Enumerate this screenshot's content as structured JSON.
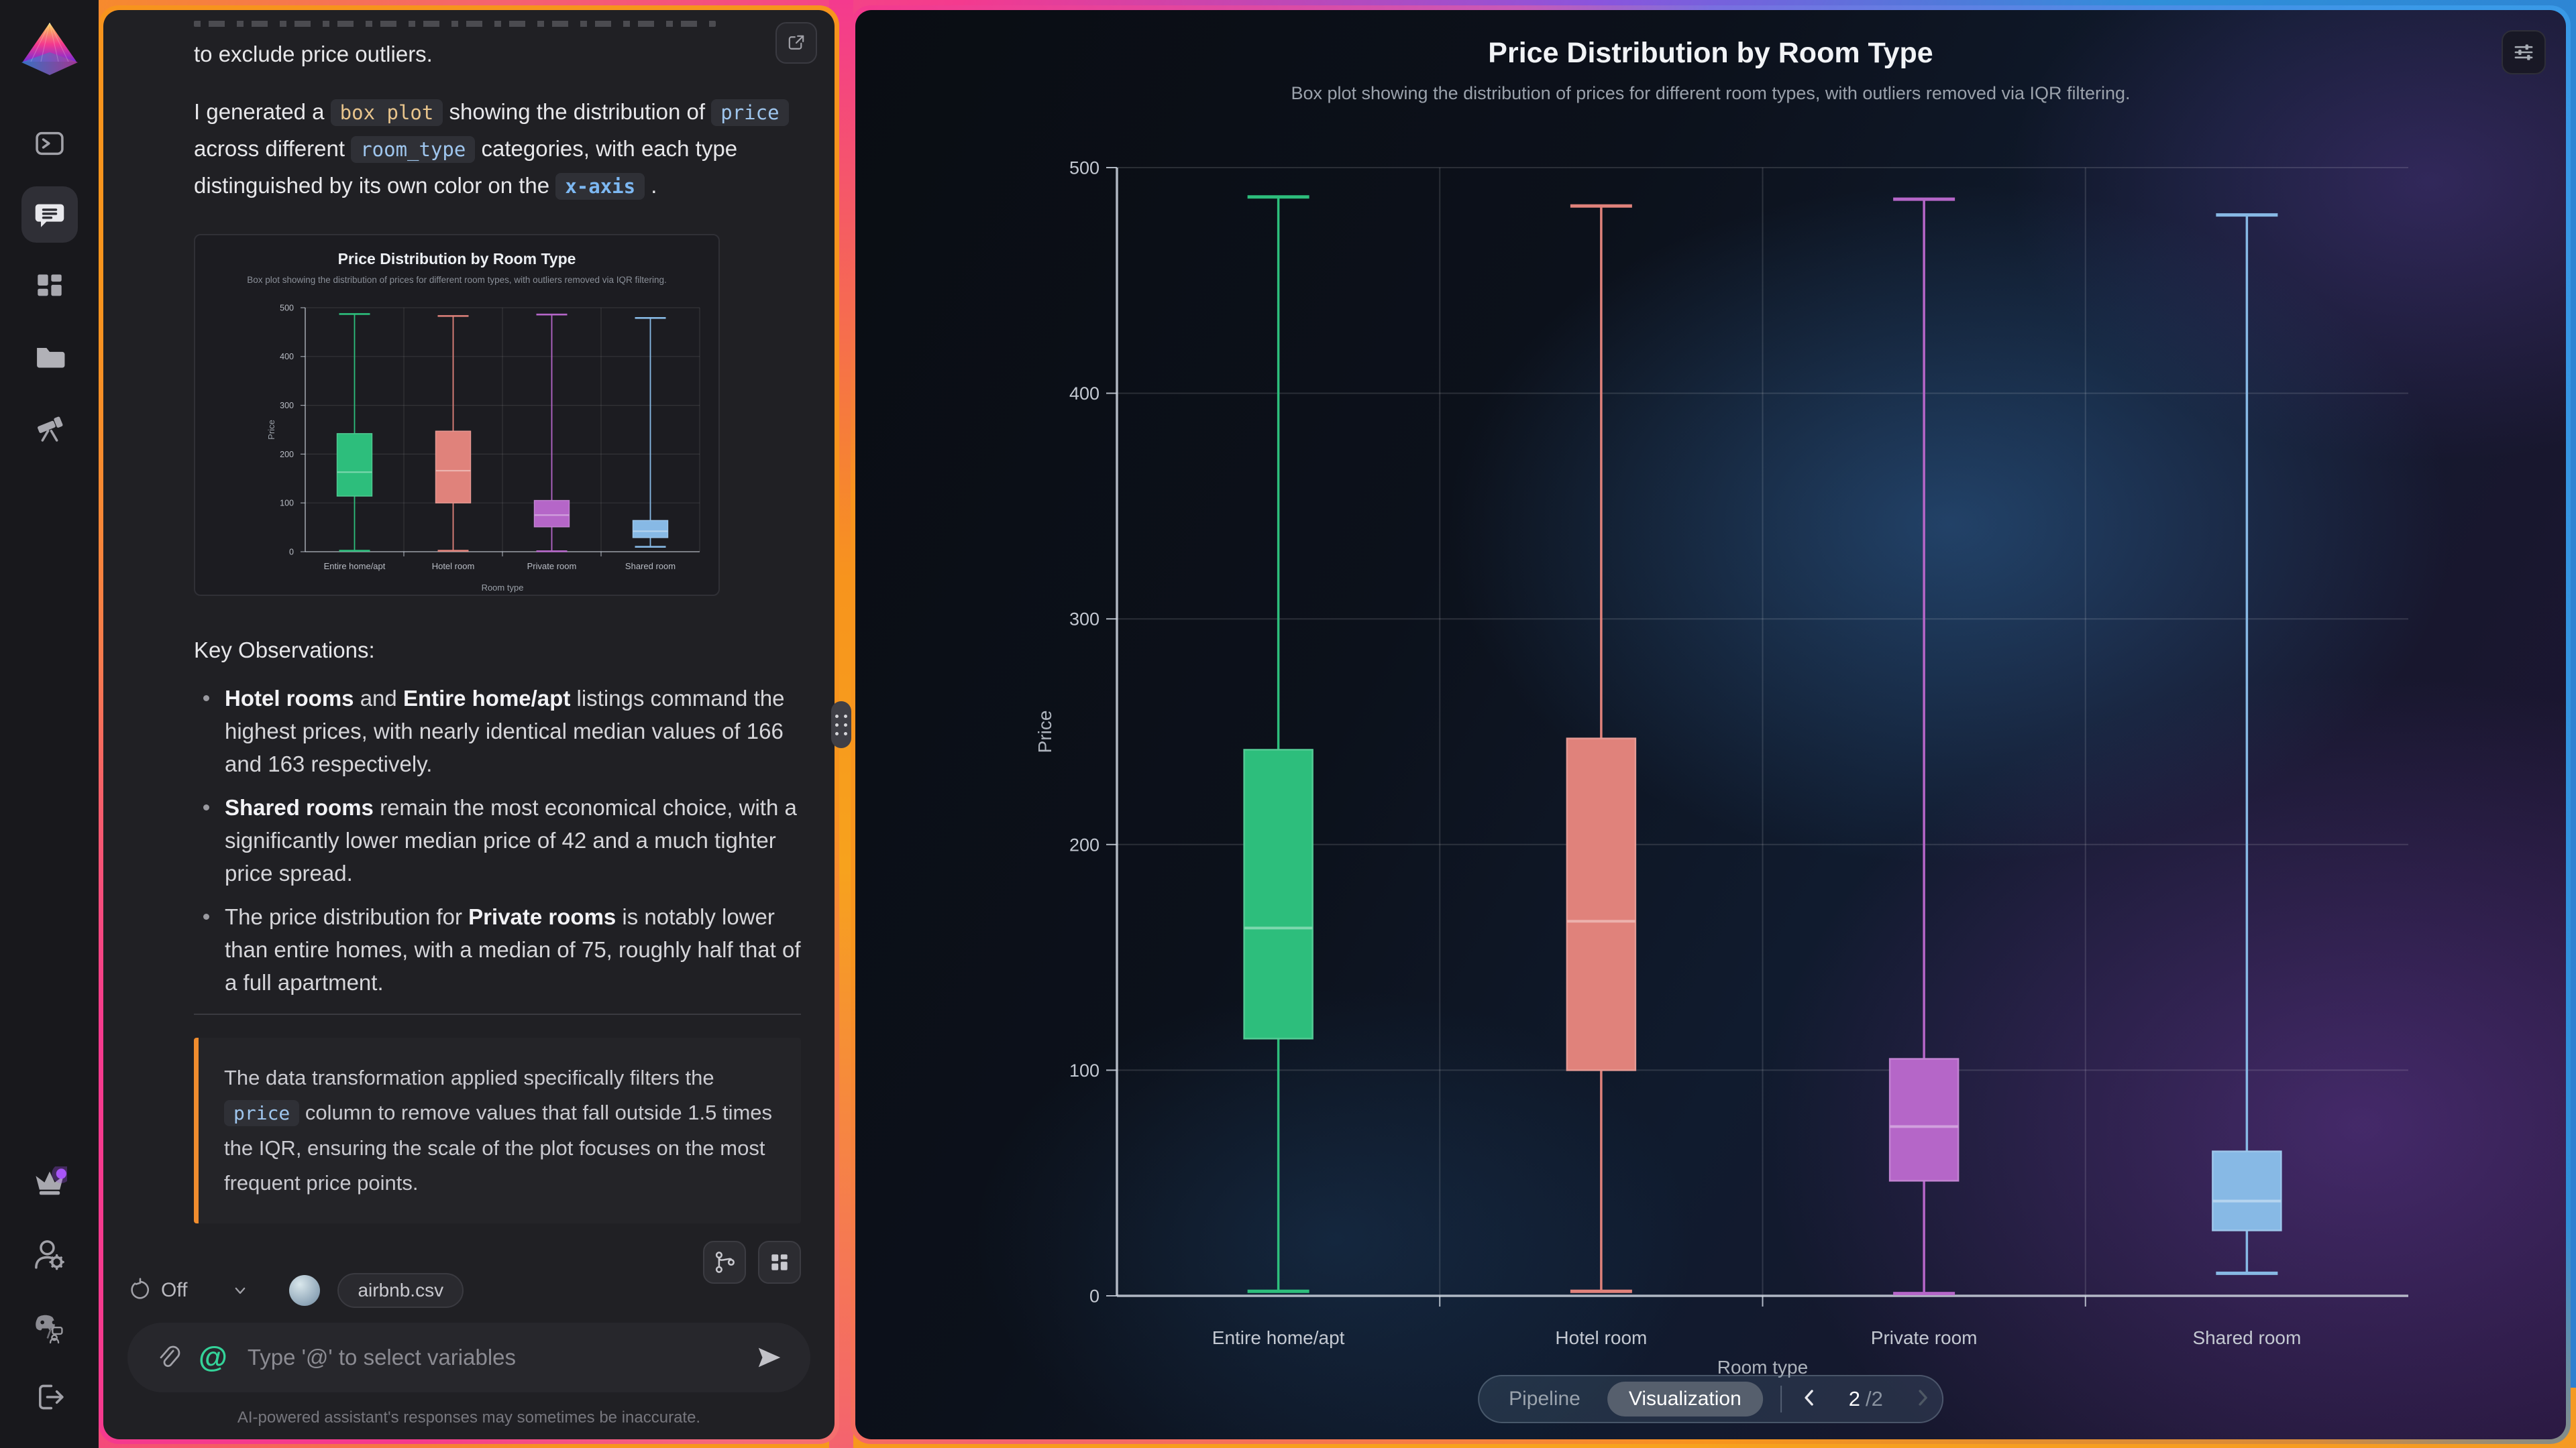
{
  "sidebar": {
    "items": [
      "terminal",
      "chat",
      "dashboard",
      "files",
      "explore"
    ],
    "bottom_items": [
      "premium-crown",
      "account-settings",
      "discord-feedback",
      "logout"
    ],
    "notification_color": "#a855f7"
  },
  "chat": {
    "intro_fragment": "to exclude price outliers.",
    "paragraph": [
      "I generated a ",
      {
        "k": "code",
        "c": "amber",
        "v": "box plot"
      },
      " showing the distribution of ",
      {
        "k": "code",
        "c": "blue",
        "v": "price"
      },
      " across different ",
      {
        "k": "code",
        "c": "blue",
        "v": "room_type"
      },
      " categories, with each type distinguished by its own color on the ",
      {
        "k": "code",
        "c": "bluebold",
        "v": "x-axis"
      },
      " ."
    ],
    "observations_title": "Key Observations:",
    "bullets": [
      [
        {
          "k": "b",
          "v": "Hotel rooms"
        },
        " and ",
        {
          "k": "b",
          "v": "Entire home/apt"
        },
        " listings command the highest prices, with nearly identical median values of 166 and 163 respectively."
      ],
      [
        {
          "k": "b",
          "v": "Shared rooms"
        },
        " remain the most economical choice, with a significantly lower median price of 42 and a much tighter price spread."
      ],
      [
        "The price distribution for ",
        {
          "k": "b",
          "v": "Private rooms"
        },
        " is notably lower than entire homes, with a median of 75, roughly half that of a full apartment."
      ]
    ],
    "callout": [
      "The data transformation applied specifically filters the ",
      {
        "k": "code",
        "c": "blue",
        "v": "price"
      },
      " column to remove values that fall outside 1.5 times the IQR, ensuring the scale of the plot focuses on the most frequent price points."
    ],
    "meta": {
      "rerun_label": "Off",
      "file_chip": "airbnb.csv"
    },
    "composer": {
      "placeholder": "Type '@' to select variables"
    },
    "disclaimer": "AI-powered assistant's responses may sometimes be inaccurate."
  },
  "viz": {
    "footer": {
      "tabs": [
        "Pipeline",
        "Visualization"
      ],
      "active_tab": "Visualization",
      "page": "2",
      "total": "/2"
    }
  },
  "chart_data": {
    "type": "box",
    "title": "Price Distribution by Room Type",
    "subtitle": "Box plot showing the distribution of prices for different room types, with outliers removed via IQR filtering.",
    "xlabel": "Room type",
    "ylabel": "Price",
    "ylim": [
      0,
      500
    ],
    "yticks": [
      0,
      100,
      200,
      300,
      400,
      500
    ],
    "grid": true,
    "legend": false,
    "categories": [
      "Entire home/apt",
      "Hotel room",
      "Private room",
      "Shared room"
    ],
    "series": [
      {
        "name": "Entire home/apt",
        "whisker_low": 2,
        "q1": 114,
        "median": 163,
        "q3": 242,
        "whisker_high": 487,
        "color": "#2dbe7c"
      },
      {
        "name": "Hotel room",
        "whisker_low": 2,
        "q1": 100,
        "median": 166,
        "q3": 247,
        "whisker_high": 483,
        "color": "#e0827b"
      },
      {
        "name": "Private room",
        "whisker_low": 1,
        "q1": 51,
        "median": 75,
        "q3": 105,
        "whisker_high": 486,
        "color": "#b566c8"
      },
      {
        "name": "Shared room",
        "whisker_low": 10,
        "q1": 29,
        "median": 42,
        "q3": 64,
        "whisker_high": 479,
        "color": "#87b9e5"
      }
    ]
  }
}
